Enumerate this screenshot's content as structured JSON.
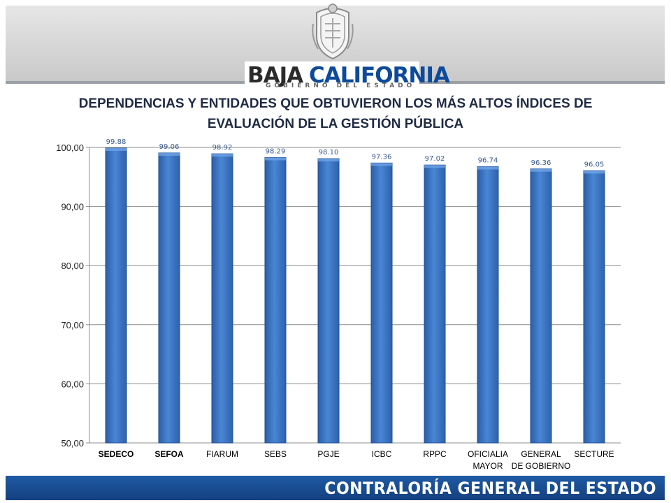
{
  "header": {
    "brand_part1": "BAJA",
    "brand_part2": "CALIFORNIA",
    "brand_sub": "GOBIERNO DEL ESTADO",
    "brand_color_dark": "#2b2b2b",
    "brand_color_accent": "#0e4a9a",
    "seal_icon": "state-coat-of-arms"
  },
  "chart_data": {
    "type": "bar",
    "title_line1": "DEPENDENCIAS Y ENTIDADES QUE OBTUVIERON LOS MÁS ALTOS ÍNDICES DE",
    "title_line2": "EVALUACIÓN DE LA GESTIÓN PÚBLICA",
    "categories": [
      [
        "SEDECO"
      ],
      [
        "SEFOA"
      ],
      [
        "FIARUM"
      ],
      [
        "SEBS"
      ],
      [
        "PGJE"
      ],
      [
        "ICBC"
      ],
      [
        "RPPC"
      ],
      [
        "OFICIALIA",
        "MAYOR"
      ],
      [
        "GENERAL",
        "DE GOBIERNO"
      ],
      [
        "SECTURE"
      ]
    ],
    "bold_categories": [
      "SEDECO",
      "SEFOA"
    ],
    "values": [
      99.88,
      99.06,
      98.92,
      98.29,
      98.1,
      97.36,
      97.02,
      96.74,
      96.36,
      96.05
    ],
    "value_labels": [
      "99.88",
      "99.06",
      "98.92",
      "98.29",
      "98.10",
      "97.36",
      "97.02",
      "96.74",
      "96.36",
      "96.05"
    ],
    "ylim": [
      50,
      100
    ],
    "yticks": [
      50,
      60,
      70,
      80,
      90,
      100
    ],
    "ytick_labels": [
      "50,00",
      "60,00",
      "70,00",
      "80,00",
      "90,00",
      "100,00"
    ],
    "grid": true,
    "bar_color": "#3a73c0",
    "label_color": "#3a5a8c"
  },
  "footer": {
    "text": "CONTRALORÍA GENERAL DEL ESTADO",
    "color": "#1f5aa6"
  }
}
